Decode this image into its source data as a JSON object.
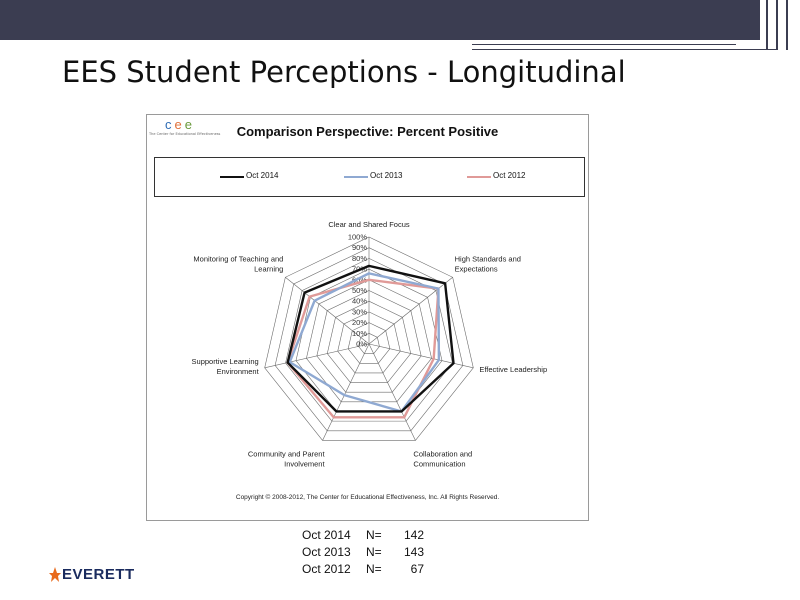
{
  "slide": {
    "title": "EES Student Perceptions - Longitudinal"
  },
  "logo": {
    "letters": [
      "c",
      "e",
      "e"
    ],
    "letter_colors": [
      "#2f6db5",
      "#e0703a",
      "#6a9a3c"
    ],
    "tagline": "The Center for Educational Effectiveness"
  },
  "chart_data": {
    "type": "radar",
    "title": "Comparison Perspective: Percent Positive",
    "axes": [
      "Clear and Shared Focus",
      "High Standards and Expectations",
      "Effective Leadership",
      "Collaboration and Communication",
      "Community and Parent Involvement",
      "Supportive Learning Environment",
      "Monitoring of Teaching and Learning"
    ],
    "axis_label_lines": [
      [
        "Clear and Shared Focus"
      ],
      [
        "High Standards and",
        "Expectations"
      ],
      [
        "Effective Leadership"
      ],
      [
        "Collaboration and",
        "Communication"
      ],
      [
        "Community and Parent",
        "Involvement"
      ],
      [
        "Supportive Learning",
        "Environment"
      ],
      [
        "Monitoring of Teaching and",
        "Learning"
      ]
    ],
    "tick_labels": [
      "0%",
      "10%",
      "20%",
      "30%",
      "40%",
      "50%",
      "60%",
      "70%",
      "80%",
      "90%",
      "100%"
    ],
    "range": [
      0,
      100
    ],
    "series": [
      {
        "name": "Oct 2014",
        "color": "#111111",
        "values": [
          73,
          91,
          81,
          70,
          70,
          78,
          77
        ]
      },
      {
        "name": "Oct 2013",
        "color": "#8fa9d2",
        "values": [
          66,
          83,
          67,
          70,
          53,
          76,
          65
        ]
      },
      {
        "name": "Oct 2012",
        "color": "#e09a98",
        "values": [
          60,
          83,
          62,
          76,
          76,
          78,
          71
        ]
      }
    ]
  },
  "copyright": "Copyright © 2008-2012, The Center for Educational Effectiveness, Inc. All Rights Reserved.",
  "n_counts": {
    "rows": [
      {
        "label": "Oct 2014",
        "eq": "N=",
        "value": "142"
      },
      {
        "label": "Oct 2013",
        "eq": "N=",
        "value": "143"
      },
      {
        "label": "Oct 2012",
        "eq": "N=",
        "value": "67"
      }
    ]
  },
  "brand": {
    "name": "EVERETT",
    "star_color": "#e86a1c",
    "text_color": "#1a2b5e"
  }
}
